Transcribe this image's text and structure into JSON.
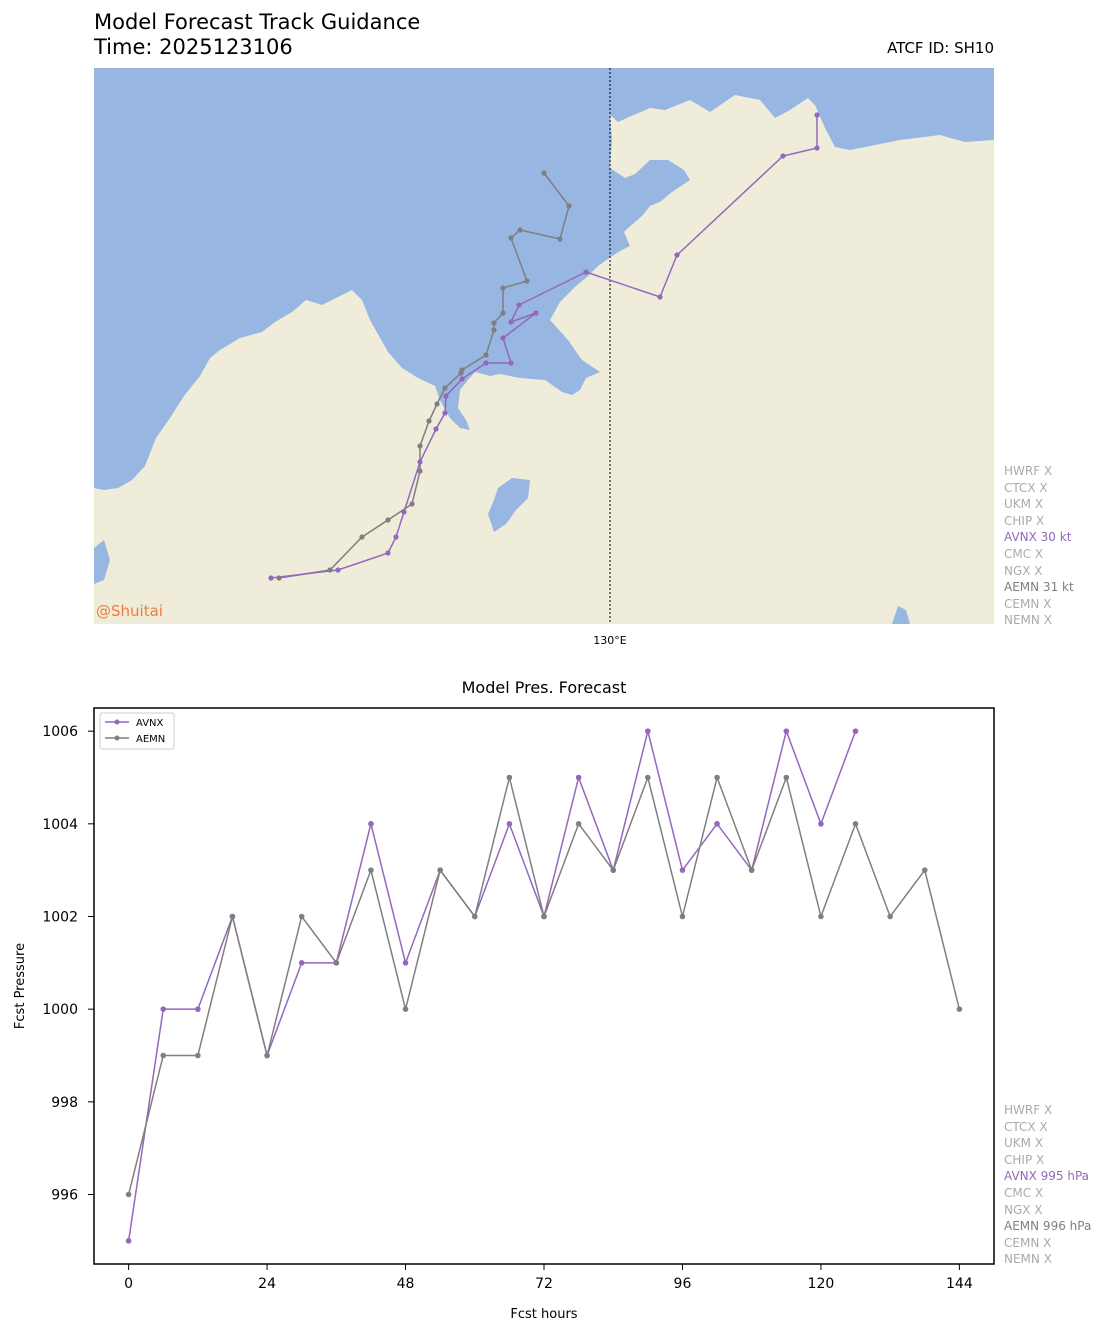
{
  "header": {
    "title": "Model Forecast Track Guidance",
    "time": "Time: 2025123106",
    "atcf": "ATCF ID: SH10"
  },
  "map": {
    "meridian_label": "130°E",
    "watermark": "@Shuitai",
    "colors": {
      "ocean": "#97b6e1",
      "land": "#efedda",
      "watermark": "#f5793a"
    }
  },
  "track_status": [
    {
      "label": "HWRF X",
      "color": "#aaaaaa"
    },
    {
      "label": "CTCX X",
      "color": "#aaaaaa"
    },
    {
      "label": "UKM X",
      "color": "#aaaaaa"
    },
    {
      "label": "CHIP X",
      "color": "#aaaaaa"
    },
    {
      "label": "AVNX 30 kt",
      "color": "#9467bd"
    },
    {
      "label": "CMC X",
      "color": "#aaaaaa"
    },
    {
      "label": "NGX X",
      "color": "#aaaaaa"
    },
    {
      "label": "AEMN 31 kt",
      "color": "#7f7f7f"
    },
    {
      "label": "CEMN X",
      "color": "#aaaaaa"
    },
    {
      "label": "NEMN X",
      "color": "#aaaaaa"
    }
  ],
  "pres_status": [
    {
      "label": "HWRF X",
      "color": "#aaaaaa"
    },
    {
      "label": "CTCX X",
      "color": "#aaaaaa"
    },
    {
      "label": "UKM X",
      "color": "#aaaaaa"
    },
    {
      "label": "CHIP X",
      "color": "#aaaaaa"
    },
    {
      "label": "AVNX 995 hPa",
      "color": "#9467bd"
    },
    {
      "label": "CMC X",
      "color": "#aaaaaa"
    },
    {
      "label": "NGX X",
      "color": "#aaaaaa"
    },
    {
      "label": "AEMN 996 hPa",
      "color": "#7f7f7f"
    },
    {
      "label": "CEMN X",
      "color": "#aaaaaa"
    },
    {
      "label": "NEMN X",
      "color": "#aaaaaa"
    }
  ],
  "chart_data": {
    "type": "line",
    "title": "Model Pres. Forecast",
    "xlabel": "Fcst hours",
    "ylabel": "Fcst Pressure",
    "xlim": [
      -6,
      150
    ],
    "ylim": [
      994.5,
      1006.5
    ],
    "xticks": [
      0,
      24,
      48,
      72,
      96,
      120,
      144
    ],
    "yticks": [
      996,
      998,
      1000,
      1002,
      1004,
      1006
    ],
    "legend": "top-left",
    "series": [
      {
        "name": "AVNX",
        "color": "#9467bd",
        "x": [
          0,
          6,
          12,
          18,
          24,
          30,
          36,
          42,
          48,
          54,
          60,
          66,
          72,
          78,
          84,
          90,
          96,
          102,
          108,
          114,
          120,
          126
        ],
        "y": [
          995,
          1000,
          1000,
          1002,
          999,
          1001,
          1001,
          1004,
          1001,
          1003,
          1002,
          1004,
          1002,
          1005,
          1003,
          1006,
          1003,
          1004,
          1003,
          1006,
          1004,
          1006
        ]
      },
      {
        "name": "AEMN",
        "color": "#7f7f7f",
        "x": [
          0,
          6,
          12,
          18,
          24,
          30,
          36,
          42,
          48,
          54,
          60,
          66,
          72,
          78,
          84,
          90,
          96,
          102,
          108,
          114,
          120,
          126,
          132,
          138,
          144
        ],
        "y": [
          996,
          999,
          999,
          1002,
          999,
          1002,
          1001,
          1003,
          1000,
          1003,
          1002,
          1005,
          1002,
          1004,
          1003,
          1005,
          1002,
          1005,
          1003,
          1005,
          1002,
          1004,
          1002,
          1003,
          1000
        ]
      }
    ]
  }
}
